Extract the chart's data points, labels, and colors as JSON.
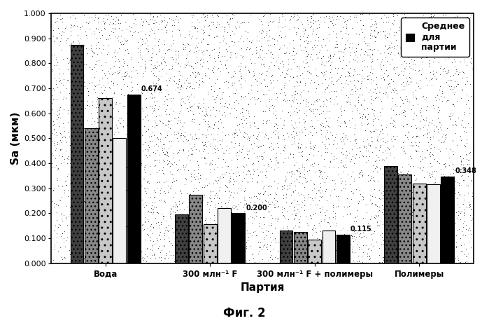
{
  "groups": [
    "Вода",
    "300 млн⁻¹ F",
    "300 млн⁻¹ F + полимеры",
    "Полимеры"
  ],
  "bar_values": [
    [
      0.875,
      0.54,
      0.66,
      0.5
    ],
    [
      0.195,
      0.275,
      0.155,
      0.22
    ],
    [
      0.13,
      0.125,
      0.095,
      0.13
    ],
    [
      0.39,
      0.355,
      0.32,
      0.315
    ]
  ],
  "mean_values": [
    0.674,
    0.2,
    0.115,
    0.348
  ],
  "mean_labels": [
    "0.674",
    "0.200",
    "0.115",
    "0.348"
  ],
  "bar_hatch": [
    "dense_dot",
    "dense_dot",
    "light_dot",
    "none"
  ],
  "mean_color": "#000000",
  "ylim": [
    0.0,
    1.0
  ],
  "yticks": [
    0.0,
    0.1,
    0.2,
    0.3,
    0.4,
    0.5,
    0.6,
    0.7,
    0.8,
    0.9,
    1.0
  ],
  "ylabel": "Sa (мкм)",
  "xlabel": "Партия",
  "caption": "Фиг. 2",
  "legend_label": "Среднее\nдля\nпартии",
  "background_color": "#ffffff",
  "noise_density": 6000,
  "noise_color": "#000000",
  "noise_alpha": 0.55,
  "bar_face_dark": "#404040",
  "bar_face_medium": "#888888",
  "bar_face_light": "#c8c8c8",
  "bar_face_white": "#f0f0f0"
}
